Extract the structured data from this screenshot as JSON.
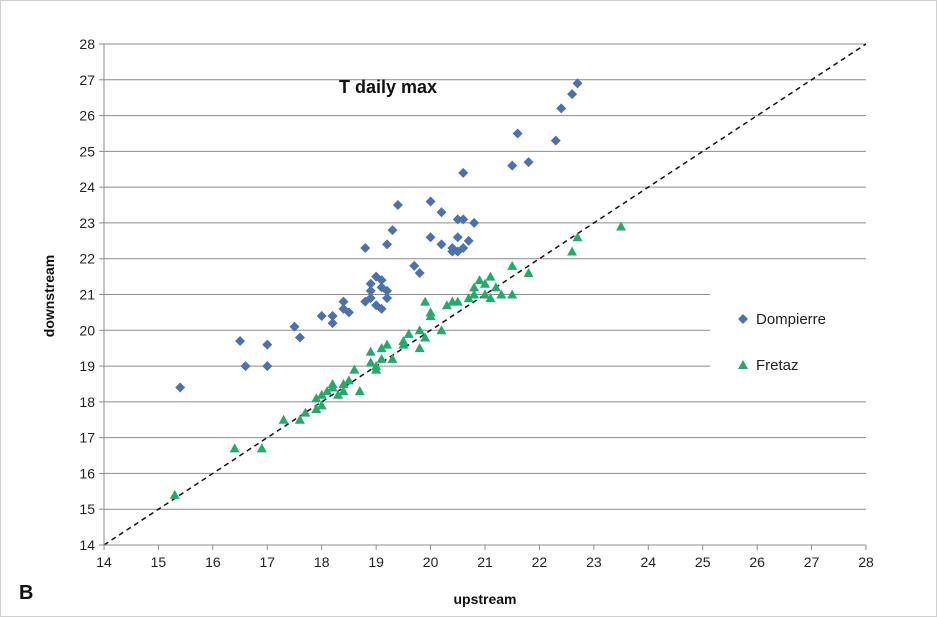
{
  "panel_label": "B",
  "chart_data": {
    "type": "scatter",
    "title": "T daily max",
    "xlabel": "upstream",
    "ylabel": "downstream",
    "xlim": [
      14,
      28
    ],
    "ylim": [
      14,
      28
    ],
    "xticks": [
      14,
      15,
      16,
      17,
      18,
      19,
      20,
      21,
      22,
      23,
      24,
      25,
      26,
      27,
      28
    ],
    "yticks": [
      14,
      15,
      16,
      17,
      18,
      19,
      20,
      21,
      22,
      23,
      24,
      25,
      26,
      27,
      28
    ],
    "grid": "horizontal",
    "legend_position": "right",
    "reference_line": {
      "style": "dashed",
      "from": [
        14,
        14
      ],
      "to": [
        28,
        28
      ]
    },
    "series": [
      {
        "name": "Dompierre",
        "marker": "diamond",
        "color": "#4a72b0",
        "points": [
          [
            15.4,
            18.4
          ],
          [
            16.5,
            19.7
          ],
          [
            16.6,
            19.0
          ],
          [
            17.0,
            19.6
          ],
          [
            17.0,
            19.0
          ],
          [
            17.5,
            20.1
          ],
          [
            17.6,
            19.8
          ],
          [
            18.0,
            20.4
          ],
          [
            18.2,
            20.4
          ],
          [
            18.2,
            20.2
          ],
          [
            18.4,
            20.6
          ],
          [
            18.4,
            20.8
          ],
          [
            18.5,
            20.5
          ],
          [
            18.8,
            20.8
          ],
          [
            18.8,
            22.3
          ],
          [
            18.9,
            20.9
          ],
          [
            18.9,
            21.1
          ],
          [
            18.9,
            21.3
          ],
          [
            19.0,
            21.5
          ],
          [
            19.0,
            20.7
          ],
          [
            19.1,
            21.4
          ],
          [
            19.1,
            21.2
          ],
          [
            19.1,
            20.6
          ],
          [
            19.2,
            21.1
          ],
          [
            19.2,
            20.9
          ],
          [
            19.2,
            22.4
          ],
          [
            19.3,
            22.8
          ],
          [
            19.4,
            23.5
          ],
          [
            19.7,
            21.8
          ],
          [
            19.8,
            21.6
          ],
          [
            20.0,
            22.6
          ],
          [
            20.0,
            23.6
          ],
          [
            20.2,
            22.4
          ],
          [
            20.2,
            23.3
          ],
          [
            20.4,
            22.3
          ],
          [
            20.4,
            22.2
          ],
          [
            20.5,
            22.6
          ],
          [
            20.5,
            23.1
          ],
          [
            20.5,
            22.2
          ],
          [
            20.6,
            24.4
          ],
          [
            20.6,
            22.3
          ],
          [
            20.6,
            23.1
          ],
          [
            20.7,
            22.5
          ],
          [
            20.8,
            23.0
          ],
          [
            21.5,
            24.6
          ],
          [
            21.6,
            25.5
          ],
          [
            21.8,
            24.7
          ],
          [
            22.3,
            25.3
          ],
          [
            22.4,
            26.2
          ],
          [
            22.6,
            26.6
          ],
          [
            22.7,
            26.9
          ]
        ]
      },
      {
        "name": "Fretaz",
        "marker": "triangle",
        "color": "#1fae6a",
        "points": [
          [
            15.3,
            15.4
          ],
          [
            16.4,
            16.7
          ],
          [
            16.9,
            16.7
          ],
          [
            17.3,
            17.5
          ],
          [
            17.6,
            17.5
          ],
          [
            17.7,
            17.7
          ],
          [
            17.9,
            17.8
          ],
          [
            17.9,
            18.1
          ],
          [
            18.0,
            18.2
          ],
          [
            18.0,
            17.9
          ],
          [
            18.1,
            18.3
          ],
          [
            18.2,
            18.4
          ],
          [
            18.2,
            18.5
          ],
          [
            18.3,
            18.2
          ],
          [
            18.4,
            18.3
          ],
          [
            18.4,
            18.5
          ],
          [
            18.5,
            18.6
          ],
          [
            18.6,
            18.9
          ],
          [
            18.7,
            18.3
          ],
          [
            18.9,
            19.1
          ],
          [
            18.9,
            19.4
          ],
          [
            19.0,
            19.0
          ],
          [
            19.0,
            18.9
          ],
          [
            19.1,
            19.2
          ],
          [
            19.1,
            19.5
          ],
          [
            19.2,
            19.6
          ],
          [
            19.3,
            19.2
          ],
          [
            19.5,
            19.7
          ],
          [
            19.5,
            19.6
          ],
          [
            19.6,
            19.9
          ],
          [
            19.8,
            19.5
          ],
          [
            19.8,
            20.0
          ],
          [
            19.9,
            19.8
          ],
          [
            19.9,
            20.8
          ],
          [
            20.0,
            20.5
          ],
          [
            20.0,
            20.4
          ],
          [
            20.2,
            20.0
          ],
          [
            20.3,
            20.7
          ],
          [
            20.4,
            20.8
          ],
          [
            20.5,
            20.8
          ],
          [
            20.7,
            20.9
          ],
          [
            20.8,
            21.2
          ],
          [
            20.8,
            21.0
          ],
          [
            20.9,
            21.4
          ],
          [
            21.0,
            21.0
          ],
          [
            21.0,
            21.3
          ],
          [
            21.1,
            20.9
          ],
          [
            21.1,
            21.5
          ],
          [
            21.2,
            21.2
          ],
          [
            21.3,
            21.0
          ],
          [
            21.5,
            21.0
          ],
          [
            21.5,
            21.8
          ],
          [
            21.8,
            21.6
          ],
          [
            22.6,
            22.2
          ],
          [
            22.7,
            22.6
          ],
          [
            23.5,
            22.9
          ]
        ]
      }
    ]
  }
}
